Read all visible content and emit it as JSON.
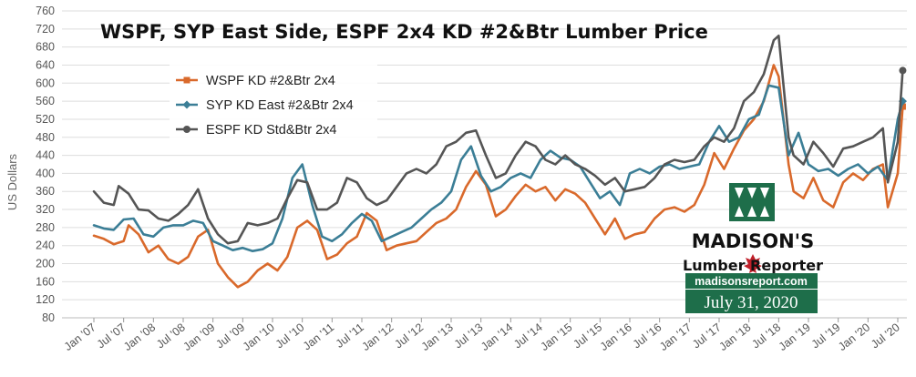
{
  "chart_data": {
    "type": "line",
    "title": "WSPF, SYP East Side, ESPF 2x4 KD #2&Btr Lumber Price",
    "ylabel": "US Dollars",
    "xlabel": "",
    "ylim": [
      80,
      760
    ],
    "yticks": [
      80,
      120,
      160,
      200,
      240,
      280,
      320,
      360,
      400,
      440,
      480,
      520,
      560,
      600,
      640,
      680,
      720,
      760
    ],
    "xlim": [
      "2007-01",
      "2020-07"
    ],
    "xtick_labels": [
      "Jan '07",
      "Jul '07",
      "Jan '08",
      "Jul '08",
      "Jan '09",
      "Jul '09",
      "Jan '10",
      "Jul '10",
      "Jan '11",
      "Jul '11",
      "Jan '12",
      "Jul '12",
      "Jan '13",
      "Jul '13",
      "Jan '14",
      "Jul '14",
      "Jan '15",
      "Jul '15",
      "Jan '16",
      "Jul '16",
      "Jan '17",
      "Jul '17",
      "Jan '18",
      "Jul '18",
      "Jan '19",
      "Jul '19",
      "Jan '20",
      "Jul '20"
    ],
    "grid": true,
    "legend_position": "top-left",
    "series": [
      {
        "name": "WSPF KD #2&Btr 2x4",
        "color": "#d9692b",
        "marker": "square",
        "points": [
          [
            "2007-01",
            262
          ],
          [
            "2007-03",
            255
          ],
          [
            "2007-05",
            243
          ],
          [
            "2007-07",
            250
          ],
          [
            "2007-08",
            285
          ],
          [
            "2007-10",
            265
          ],
          [
            "2007-12",
            225
          ],
          [
            "2008-02",
            240
          ],
          [
            "2008-04",
            210
          ],
          [
            "2008-06",
            200
          ],
          [
            "2008-08",
            215
          ],
          [
            "2008-10",
            260
          ],
          [
            "2008-12",
            275
          ],
          [
            "2009-02",
            200
          ],
          [
            "2009-04",
            170
          ],
          [
            "2009-06",
            148
          ],
          [
            "2009-08",
            160
          ],
          [
            "2009-10",
            185
          ],
          [
            "2009-12",
            200
          ],
          [
            "2010-02",
            185
          ],
          [
            "2010-04",
            215
          ],
          [
            "2010-06",
            280
          ],
          [
            "2010-08",
            295
          ],
          [
            "2010-10",
            275
          ],
          [
            "2010-12",
            210
          ],
          [
            "2011-02",
            220
          ],
          [
            "2011-04",
            245
          ],
          [
            "2011-06",
            260
          ],
          [
            "2011-08",
            312
          ],
          [
            "2011-10",
            295
          ],
          [
            "2011-12",
            230
          ],
          [
            "2012-02",
            240
          ],
          [
            "2012-04",
            245
          ],
          [
            "2012-06",
            250
          ],
          [
            "2012-08",
            270
          ],
          [
            "2012-10",
            290
          ],
          [
            "2012-12",
            300
          ],
          [
            "2013-02",
            320
          ],
          [
            "2013-04",
            370
          ],
          [
            "2013-06",
            405
          ],
          [
            "2013-08",
            375
          ],
          [
            "2013-10",
            305
          ],
          [
            "2013-12",
            320
          ],
          [
            "2014-02",
            350
          ],
          [
            "2014-04",
            375
          ],
          [
            "2014-06",
            360
          ],
          [
            "2014-08",
            370
          ],
          [
            "2014-10",
            340
          ],
          [
            "2014-12",
            365
          ],
          [
            "2015-02",
            355
          ],
          [
            "2015-04",
            335
          ],
          [
            "2015-06",
            300
          ],
          [
            "2015-08",
            265
          ],
          [
            "2015-10",
            300
          ],
          [
            "2015-12",
            255
          ],
          [
            "2016-02",
            265
          ],
          [
            "2016-04",
            270
          ],
          [
            "2016-06",
            300
          ],
          [
            "2016-08",
            320
          ],
          [
            "2016-10",
            325
          ],
          [
            "2016-12",
            315
          ],
          [
            "2017-02",
            330
          ],
          [
            "2017-04",
            375
          ],
          [
            "2017-06",
            445
          ],
          [
            "2017-08",
            410
          ],
          [
            "2017-10",
            455
          ],
          [
            "2017-12",
            495
          ],
          [
            "2018-02",
            520
          ],
          [
            "2018-04",
            560
          ],
          [
            "2018-06",
            640
          ],
          [
            "2018-07",
            615
          ],
          [
            "2018-09",
            420
          ],
          [
            "2018-10",
            360
          ],
          [
            "2018-12",
            345
          ],
          [
            "2019-02",
            390
          ],
          [
            "2019-04",
            340
          ],
          [
            "2019-06",
            325
          ],
          [
            "2019-08",
            380
          ],
          [
            "2019-10",
            400
          ],
          [
            "2019-12",
            385
          ],
          [
            "2020-02",
            410
          ],
          [
            "2020-04",
            420
          ],
          [
            "2020-05",
            325
          ],
          [
            "2020-07",
            400
          ],
          [
            "2020-08",
            548
          ]
        ]
      },
      {
        "name": "SYP KD East #2&Btr 2x4",
        "color": "#3b7e96",
        "marker": "diamond",
        "points": [
          [
            "2007-01",
            285
          ],
          [
            "2007-03",
            278
          ],
          [
            "2007-05",
            275
          ],
          [
            "2007-07",
            298
          ],
          [
            "2007-09",
            300
          ],
          [
            "2007-11",
            265
          ],
          [
            "2008-01",
            260
          ],
          [
            "2008-03",
            280
          ],
          [
            "2008-05",
            285
          ],
          [
            "2008-07",
            285
          ],
          [
            "2008-09",
            295
          ],
          [
            "2008-11",
            290
          ],
          [
            "2009-01",
            250
          ],
          [
            "2009-03",
            240
          ],
          [
            "2009-05",
            230
          ],
          [
            "2009-07",
            235
          ],
          [
            "2009-09",
            228
          ],
          [
            "2009-11",
            232
          ],
          [
            "2010-01",
            245
          ],
          [
            "2010-03",
            300
          ],
          [
            "2010-05",
            390
          ],
          [
            "2010-07",
            420
          ],
          [
            "2010-09",
            330
          ],
          [
            "2010-11",
            260
          ],
          [
            "2011-01",
            250
          ],
          [
            "2011-03",
            265
          ],
          [
            "2011-05",
            290
          ],
          [
            "2011-07",
            310
          ],
          [
            "2011-09",
            295
          ],
          [
            "2011-11",
            250
          ],
          [
            "2012-01",
            260
          ],
          [
            "2012-03",
            270
          ],
          [
            "2012-05",
            280
          ],
          [
            "2012-07",
            300
          ],
          [
            "2012-09",
            320
          ],
          [
            "2012-11",
            335
          ],
          [
            "2013-01",
            360
          ],
          [
            "2013-03",
            430
          ],
          [
            "2013-05",
            460
          ],
          [
            "2013-07",
            395
          ],
          [
            "2013-09",
            360
          ],
          [
            "2013-11",
            370
          ],
          [
            "2014-01",
            390
          ],
          [
            "2014-03",
            400
          ],
          [
            "2014-05",
            390
          ],
          [
            "2014-07",
            430
          ],
          [
            "2014-09",
            450
          ],
          [
            "2014-11",
            435
          ],
          [
            "2015-01",
            430
          ],
          [
            "2015-03",
            415
          ],
          [
            "2015-05",
            380
          ],
          [
            "2015-07",
            345
          ],
          [
            "2015-09",
            360
          ],
          [
            "2015-11",
            330
          ],
          [
            "2016-01",
            400
          ],
          [
            "2016-03",
            410
          ],
          [
            "2016-05",
            400
          ],
          [
            "2016-07",
            415
          ],
          [
            "2016-09",
            420
          ],
          [
            "2016-11",
            410
          ],
          [
            "2017-01",
            415
          ],
          [
            "2017-03",
            420
          ],
          [
            "2017-05",
            470
          ],
          [
            "2017-07",
            505
          ],
          [
            "2017-09",
            470
          ],
          [
            "2017-11",
            480
          ],
          [
            "2018-01",
            520
          ],
          [
            "2018-03",
            530
          ],
          [
            "2018-05",
            595
          ],
          [
            "2018-07",
            590
          ],
          [
            "2018-09",
            440
          ],
          [
            "2018-11",
            490
          ],
          [
            "2019-01",
            420
          ],
          [
            "2019-03",
            405
          ],
          [
            "2019-05",
            410
          ],
          [
            "2019-07",
            395
          ],
          [
            "2019-09",
            410
          ],
          [
            "2019-11",
            420
          ],
          [
            "2020-01",
            400
          ],
          [
            "2020-03",
            415
          ],
          [
            "2020-05",
            385
          ],
          [
            "2020-07",
            520
          ],
          [
            "2020-08",
            560
          ]
        ]
      },
      {
        "name": "ESPF KD Std&Btr 2x4",
        "color": "#555555",
        "marker": "circle",
        "points": [
          [
            "2007-01",
            360
          ],
          [
            "2007-03",
            335
          ],
          [
            "2007-05",
            330
          ],
          [
            "2007-06",
            372
          ],
          [
            "2007-08",
            355
          ],
          [
            "2007-10",
            320
          ],
          [
            "2007-12",
            318
          ],
          [
            "2008-02",
            300
          ],
          [
            "2008-04",
            295
          ],
          [
            "2008-06",
            310
          ],
          [
            "2008-08",
            330
          ],
          [
            "2008-10",
            365
          ],
          [
            "2008-12",
            300
          ],
          [
            "2009-02",
            265
          ],
          [
            "2009-04",
            245
          ],
          [
            "2009-06",
            250
          ],
          [
            "2009-08",
            290
          ],
          [
            "2009-10",
            285
          ],
          [
            "2009-12",
            290
          ],
          [
            "2010-02",
            300
          ],
          [
            "2010-04",
            345
          ],
          [
            "2010-06",
            385
          ],
          [
            "2010-08",
            380
          ],
          [
            "2010-10",
            320
          ],
          [
            "2010-12",
            320
          ],
          [
            "2011-02",
            335
          ],
          [
            "2011-04",
            390
          ],
          [
            "2011-06",
            380
          ],
          [
            "2011-08",
            345
          ],
          [
            "2011-10",
            330
          ],
          [
            "2011-12",
            340
          ],
          [
            "2012-02",
            370
          ],
          [
            "2012-04",
            400
          ],
          [
            "2012-06",
            410
          ],
          [
            "2012-08",
            400
          ],
          [
            "2012-10",
            420
          ],
          [
            "2012-12",
            460
          ],
          [
            "2013-02",
            470
          ],
          [
            "2013-04",
            490
          ],
          [
            "2013-06",
            495
          ],
          [
            "2013-08",
            440
          ],
          [
            "2013-10",
            390
          ],
          [
            "2013-12",
            400
          ],
          [
            "2014-02",
            440
          ],
          [
            "2014-04",
            470
          ],
          [
            "2014-06",
            460
          ],
          [
            "2014-08",
            430
          ],
          [
            "2014-10",
            420
          ],
          [
            "2014-12",
            440
          ],
          [
            "2015-02",
            420
          ],
          [
            "2015-04",
            410
          ],
          [
            "2015-06",
            395
          ],
          [
            "2015-08",
            375
          ],
          [
            "2015-10",
            390
          ],
          [
            "2015-12",
            360
          ],
          [
            "2016-02",
            365
          ],
          [
            "2016-04",
            370
          ],
          [
            "2016-06",
            390
          ],
          [
            "2016-08",
            420
          ],
          [
            "2016-10",
            430
          ],
          [
            "2016-12",
            425
          ],
          [
            "2017-02",
            430
          ],
          [
            "2017-04",
            460
          ],
          [
            "2017-06",
            480
          ],
          [
            "2017-08",
            470
          ],
          [
            "2017-10",
            500
          ],
          [
            "2017-12",
            560
          ],
          [
            "2018-02",
            580
          ],
          [
            "2018-04",
            620
          ],
          [
            "2018-06",
            695
          ],
          [
            "2018-07",
            705
          ],
          [
            "2018-09",
            480
          ],
          [
            "2018-10",
            440
          ],
          [
            "2018-12",
            420
          ],
          [
            "2019-02",
            470
          ],
          [
            "2019-04",
            445
          ],
          [
            "2019-06",
            415
          ],
          [
            "2019-08",
            455
          ],
          [
            "2019-10",
            460
          ],
          [
            "2019-12",
            470
          ],
          [
            "2020-02",
            480
          ],
          [
            "2020-04",
            500
          ],
          [
            "2020-05",
            380
          ],
          [
            "2020-07",
            470
          ],
          [
            "2020-08",
            628
          ]
        ]
      }
    ]
  },
  "logo": {
    "name": "MADISON'S",
    "sub": "Lumber Reporter",
    "site": "madisonsreport.com",
    "date": "July 31, 2020"
  }
}
